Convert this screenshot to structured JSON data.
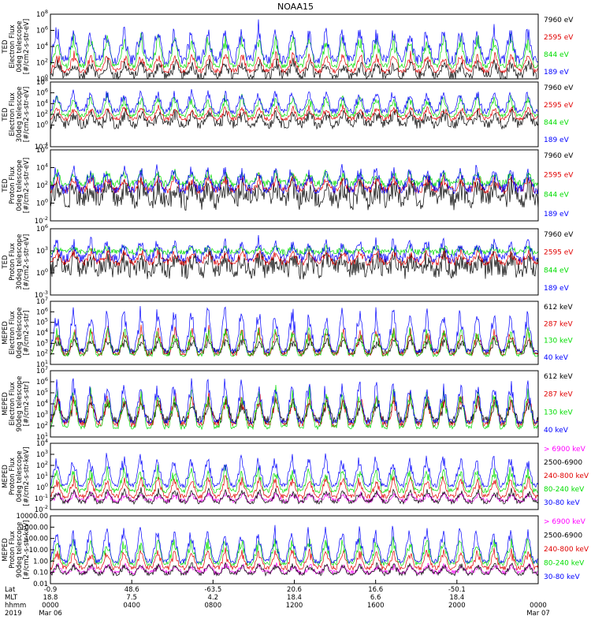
{
  "title": "NOAA15",
  "colors": {
    "black": "#000000",
    "red": "#e00000",
    "green": "#00dd00",
    "blue": "#0000ff",
    "magenta": "#ff00ff",
    "axis": "#000000"
  },
  "chart_data": [
    {
      "type": "line",
      "ylabel": [
        "TED",
        "Electron Flux",
        "0deg telescope",
        "[#/cm2-s-str-eV]"
      ],
      "log_scale": true,
      "ylim_exp": [
        0,
        8
      ],
      "tick_labels": [
        "10^0",
        "10^2",
        "10^4",
        "10^6",
        "10^8"
      ],
      "series": [
        {
          "name": "7960 eV",
          "color": "black",
          "base": 0.4,
          "spread": 0.6,
          "peak": 2.2
        },
        {
          "name": "2595 eV",
          "color": "red",
          "base": 1.0,
          "spread": 0.3,
          "peak": 3.2
        },
        {
          "name": "844 eV",
          "color": "green",
          "base": 1.6,
          "spread": 0.3,
          "peak": 5.5
        },
        {
          "name": "189 eV",
          "color": "blue",
          "base": 2.4,
          "spread": 0.6,
          "peak": 6.5
        }
      ]
    },
    {
      "type": "line",
      "ylabel": [
        "TED",
        "Electron Flux",
        "30deg telescope",
        "[#/cm2-s-str-eV]"
      ],
      "log_scale": true,
      "ylim_exp": [
        -4,
        8
      ],
      "tick_labels": [
        "10^-4",
        "10^0",
        "10^2",
        "10^4",
        "10^6",
        "10^8"
      ],
      "tick_exps": [
        -4,
        0,
        2,
        4,
        6,
        8
      ],
      "series": [
        {
          "name": "7960 eV",
          "color": "black",
          "base": 0.2,
          "spread": 0.9,
          "peak": 2.5
        },
        {
          "name": "2595 eV",
          "color": "red",
          "base": 1.2,
          "spread": 0.4,
          "peak": 3.5
        },
        {
          "name": "844 eV",
          "color": "green",
          "base": 1.8,
          "spread": 0.3,
          "peak": 5.5
        },
        {
          "name": "189 eV",
          "color": "blue",
          "base": 2.6,
          "spread": 0.5,
          "peak": 6.5
        }
      ]
    },
    {
      "type": "line",
      "ylabel": [
        "TED",
        "Proton Flux",
        "0deg telescope",
        "[#/cm2-s-str-eV]"
      ],
      "log_scale": true,
      "ylim_exp": [
        -2,
        6
      ],
      "tick_labels": [
        "10^-2",
        "10^0",
        "10^2",
        "10^4",
        "10^6"
      ],
      "series": [
        {
          "name": "7960 eV",
          "color": "black",
          "base": 0.5,
          "spread": 1.3,
          "peak": 2.2
        },
        {
          "name": "2595 eV",
          "color": "red",
          "base": 1.5,
          "spread": 0.4,
          "peak": 3.0
        },
        {
          "name": "844 eV",
          "color": "green",
          "base": 2.2,
          "spread": 0.4,
          "peak": 3.5
        },
        {
          "name": "189 eV",
          "color": "blue",
          "base": 1.6,
          "spread": 0.6,
          "peak": 4.0
        }
      ]
    },
    {
      "type": "line",
      "ylabel": [
        "TED",
        "Proton Flux",
        "30deg telescope",
        "[#/cm2-s-str-eV]"
      ],
      "log_scale": true,
      "ylim_exp": [
        -3,
        6
      ],
      "tick_labels": [
        "10^-3",
        "10^0",
        "10^3",
        "10^6"
      ],
      "series": [
        {
          "name": "7960 eV",
          "color": "black",
          "base": 0.5,
          "spread": 1.4,
          "peak": 2.2
        },
        {
          "name": "2595 eV",
          "color": "red",
          "base": 1.5,
          "spread": 0.5,
          "peak": 3.0
        },
        {
          "name": "844 eV",
          "color": "green",
          "base": 2.8,
          "spread": 0.4,
          "peak": 3.5
        },
        {
          "name": "189 eV",
          "color": "blue",
          "base": 2.0,
          "spread": 0.6,
          "peak": 4.5
        }
      ]
    },
    {
      "type": "line",
      "ylabel": [
        "MEPED",
        "Electron Flux",
        "0deg telescope",
        "[#/cm2-s-str]"
      ],
      "log_scale": true,
      "ylim_exp": [
        1,
        7
      ],
      "tick_labels": [
        "10^1",
        "10^2",
        "10^3",
        "10^4",
        "10^5",
        "10^6",
        "10^7"
      ],
      "series": [
        {
          "name": "612 keV",
          "color": "black",
          "base": 2.2,
          "spread": 0.3,
          "peak": 3.5
        },
        {
          "name": "287 keV",
          "color": "red",
          "base": 2.0,
          "spread": 0.2,
          "peak": 4.5
        },
        {
          "name": "130 keV",
          "color": "green",
          "base": 1.9,
          "spread": 0.15,
          "peak": 4.5
        },
        {
          "name": "40 keV",
          "color": "blue",
          "base": 2.3,
          "spread": 0.2,
          "peak": 6.5
        }
      ]
    },
    {
      "type": "line",
      "ylabel": [
        "MEPED",
        "Electron Flux",
        "90deg telescope",
        "[#/cm2-s-str]"
      ],
      "log_scale": true,
      "ylim_exp": [
        1,
        7
      ],
      "tick_labels": [
        "10^1",
        "10^2",
        "10^3",
        "10^4",
        "10^5",
        "10^6",
        "10^7"
      ],
      "series": [
        {
          "name": "612 keV",
          "color": "black",
          "base": 2.5,
          "spread": 0.4,
          "peak": 4.5
        },
        {
          "name": "287 keV",
          "color": "red",
          "base": 2.2,
          "spread": 0.3,
          "peak": 5.0
        },
        {
          "name": "130 keV",
          "color": "green",
          "base": 1.9,
          "spread": 0.2,
          "peak": 5.5
        },
        {
          "name": "40 keV",
          "color": "blue",
          "base": 2.4,
          "spread": 0.2,
          "peak": 6.2
        }
      ]
    },
    {
      "type": "line",
      "ylabel": [
        "MEPED",
        "Proton Flux",
        "0deg telescope",
        "[#/cm2-s-str-keV]"
      ],
      "log_scale": true,
      "ylim_exp": [
        -2,
        4
      ],
      "tick_labels": [
        "10^-2",
        "10^-1",
        "10^0",
        "10^1",
        "10^2",
        "10^3",
        "10^4"
      ],
      "series": [
        {
          "name": "> 6900 keV",
          "color": "magenta",
          "base": -1.2,
          "spread": 0.2,
          "peak": -0.5
        },
        {
          "name": "2500-6900",
          "color": "black",
          "base": -1.3,
          "spread": 0.2,
          "peak": -0.2
        },
        {
          "name": "240-800 keV",
          "color": "red",
          "base": -0.8,
          "spread": 0.2,
          "peak": 1.0
        },
        {
          "name": "80-240 keV",
          "color": "green",
          "base": -0.3,
          "spread": 0.2,
          "peak": 1.8
        },
        {
          "name": "30-80 keV",
          "color": "blue",
          "base": 0.2,
          "spread": 0.2,
          "peak": 3.0
        }
      ]
    },
    {
      "type": "line",
      "ylabel": [
        "MEPED",
        "Proton Flux",
        "90deg telescope",
        "[#/cm2-s-str-keV]"
      ],
      "log_scale": true,
      "ylim_exp": [
        -2,
        4
      ],
      "tick_labels": [
        "0.01",
        "0.10",
        "1.00",
        "10.00",
        "100.00",
        "1000.00",
        "10000.00"
      ],
      "series": [
        {
          "name": "> 6900 keV",
          "color": "magenta",
          "base": -1.0,
          "spread": 0.2,
          "peak": -0.3
        },
        {
          "name": "2500-6900",
          "color": "black",
          "base": -1.1,
          "spread": 0.2,
          "peak": -0.2
        },
        {
          "name": "240-800 keV",
          "color": "red",
          "base": -0.6,
          "spread": 0.2,
          "peak": 1.0
        },
        {
          "name": "80-240 keV",
          "color": "green",
          "base": -0.2,
          "spread": 0.2,
          "peak": 2.0
        },
        {
          "name": "30-80 keV",
          "color": "blue",
          "base": 0.0,
          "spread": 0.2,
          "peak": 3.0
        }
      ]
    }
  ],
  "xaxis": {
    "row_labels": [
      "Lat",
      "MLT",
      "hhmm",
      "2019"
    ],
    "ticks": [
      {
        "lat": "-0.9",
        "mlt": "18.8",
        "time": "0000",
        "date": "Mar 06",
        "frac": 0.0
      },
      {
        "lat": "48.6",
        "mlt": "7.5",
        "time": "0400",
        "date": "",
        "frac": 0.1667
      },
      {
        "lat": "-63.5",
        "mlt": "4.2",
        "time": "0800",
        "date": "",
        "frac": 0.3333
      },
      {
        "lat": "20.6",
        "mlt": "18.4",
        "time": "1200",
        "date": "",
        "frac": 0.5
      },
      {
        "lat": "16.6",
        "mlt": "6.6",
        "time": "1600",
        "date": "",
        "frac": 0.6667
      },
      {
        "lat": "-50.1",
        "mlt": "18.4",
        "time": "2000",
        "date": "",
        "frac": 0.8333
      },
      {
        "lat": "",
        "mlt": "",
        "time": "0000",
        "date": "Mar 07",
        "frac": 1.0
      }
    ]
  }
}
